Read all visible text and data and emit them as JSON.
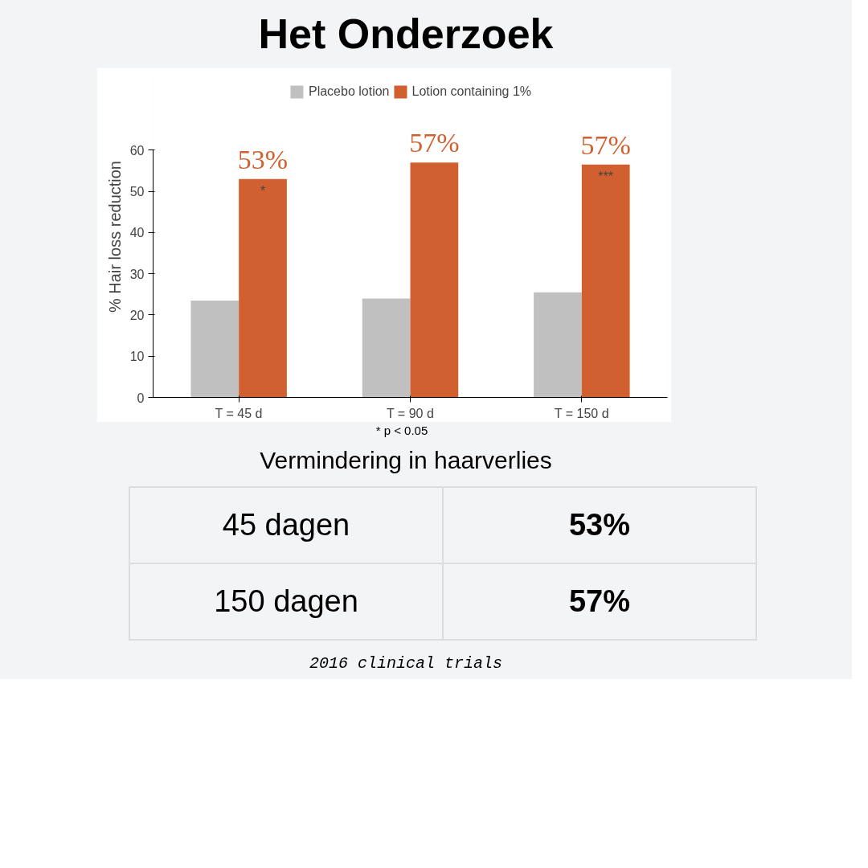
{
  "chart_data": {
    "type": "bar",
    "title": "Het Onderzoek",
    "ylabel": "% Hair loss reduction",
    "categories": [
      "T = 45 d",
      "T = 90 d",
      "T = 150 d"
    ],
    "series": [
      {
        "name": "Placebo lotion",
        "color": "#c0c0c0",
        "values": [
          23.5,
          24,
          25.5
        ]
      },
      {
        "name": "Lotion containing 1%",
        "color": "#d0602f",
        "values": [
          53,
          57,
          56.5
        ],
        "value_labels": [
          "53%",
          "57%",
          "57%"
        ]
      }
    ],
    "ylim": [
      0,
      60
    ],
    "yticks": [
      0,
      10,
      20,
      30,
      40,
      50,
      60
    ],
    "grid": false,
    "legend": "top",
    "annotations": [
      "* p < 0.05",
      "Vermindering in haarverlies",
      "45 dagen",
      "53%",
      "150 dagen",
      "57%",
      "2016 clinical trials",
      {
        "text": "*",
        "x": "T = 45 d",
        "y": 53
      },
      {
        "text": "***",
        "x": "T = 150 d",
        "y": 56.5
      }
    ]
  }
}
